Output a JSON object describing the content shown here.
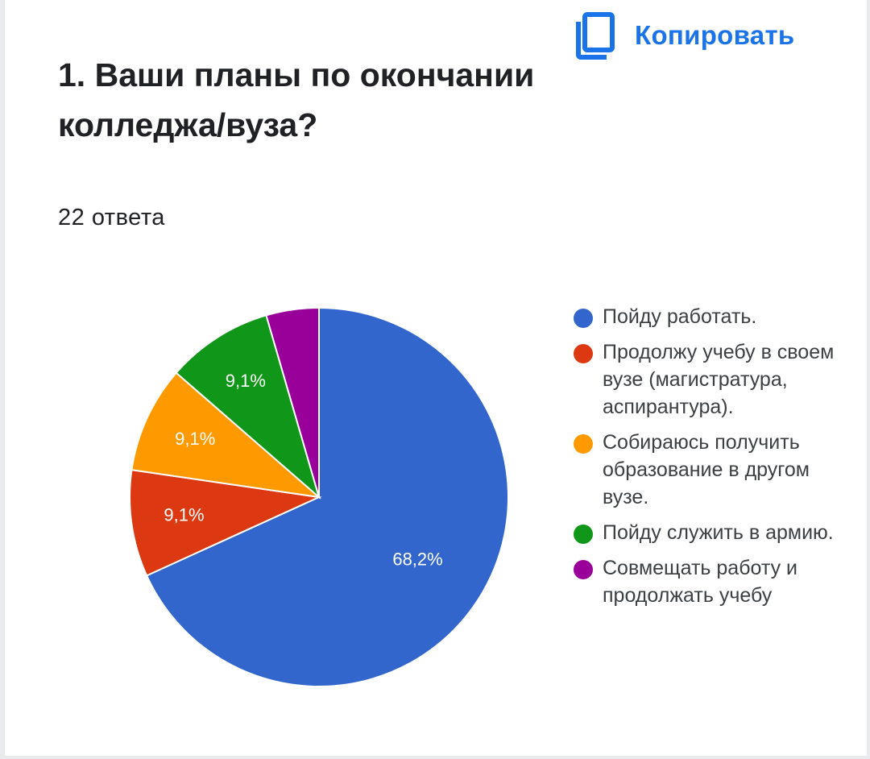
{
  "copy_button": {
    "label": "Копировать",
    "icon": "copy-icon"
  },
  "question": {
    "title": "1. Ваши планы по окончании колледжа/вуза?",
    "responses": "22 ответа"
  },
  "chart_data": {
    "type": "pie",
    "title": "1. Ваши планы по окончании колледжа/вуза?",
    "start_angle_deg": 90,
    "direction": "clockwise-from-right-negative",
    "legend_position": "right",
    "slices": [
      {
        "name": "Пойду работать.",
        "value": 68.2,
        "label": "68,2%",
        "color": "#3366cc"
      },
      {
        "name": "Продолжу учебу в своем вузе (магистратура, аспирантура).",
        "value": 9.1,
        "label": "9,1%",
        "color": "#dc3912"
      },
      {
        "name": "Собираюсь получить образование в другом вузе.",
        "value": 9.1,
        "label": "9,1%",
        "color": "#ff9900"
      },
      {
        "name": "Пойду служить в армию.",
        "value": 9.1,
        "label": "9,1%",
        "color": "#109618"
      },
      {
        "name": "Совмещать работу и продолжать учебу",
        "value": 4.5,
        "label": "",
        "color": "#990099"
      }
    ]
  }
}
